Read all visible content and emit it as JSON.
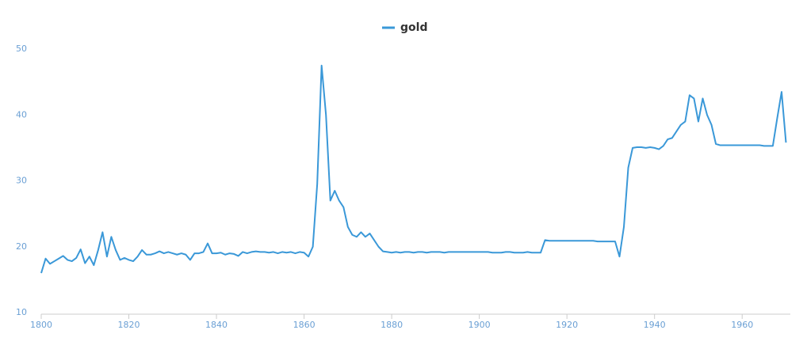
{
  "chart_data": {
    "type": "line",
    "x": [
      1800,
      1801,
      1802,
      1803,
      1804,
      1805,
      1806,
      1807,
      1808,
      1809,
      1810,
      1811,
      1812,
      1813,
      1814,
      1815,
      1816,
      1817,
      1818,
      1819,
      1820,
      1821,
      1822,
      1823,
      1824,
      1825,
      1826,
      1827,
      1828,
      1829,
      1830,
      1831,
      1832,
      1833,
      1834,
      1835,
      1836,
      1837,
      1838,
      1839,
      1840,
      1841,
      1842,
      1843,
      1844,
      1845,
      1846,
      1847,
      1848,
      1849,
      1850,
      1851,
      1852,
      1853,
      1854,
      1855,
      1856,
      1857,
      1858,
      1859,
      1860,
      1861,
      1862,
      1863,
      1864,
      1865,
      1866,
      1867,
      1868,
      1869,
      1870,
      1871,
      1872,
      1873,
      1874,
      1875,
      1876,
      1877,
      1878,
      1879,
      1880,
      1881,
      1882,
      1883,
      1884,
      1885,
      1886,
      1887,
      1888,
      1889,
      1890,
      1891,
      1892,
      1893,
      1894,
      1895,
      1896,
      1897,
      1898,
      1899,
      1900,
      1901,
      1902,
      1903,
      1904,
      1905,
      1906,
      1907,
      1908,
      1909,
      1910,
      1911,
      1912,
      1913,
      1914,
      1915,
      1916,
      1917,
      1918,
      1919,
      1920,
      1921,
      1922,
      1923,
      1924,
      1925,
      1926,
      1927,
      1928,
      1929,
      1930,
      1931,
      1932,
      1933,
      1934,
      1935,
      1936,
      1937,
      1938,
      1939,
      1940,
      1941,
      1942,
      1943,
      1944,
      1945,
      1946,
      1947,
      1948,
      1949,
      1950,
      1951,
      1952,
      1953,
      1954,
      1955,
      1956,
      1957,
      1958,
      1959,
      1960,
      1961,
      1962,
      1963,
      1964,
      1965,
      1966,
      1967,
      1968,
      1969,
      1970
    ],
    "series": [
      {
        "name": "gold",
        "color": "#3a98d8",
        "values": [
          16,
          18.2,
          17.4,
          17.8,
          18.2,
          18.6,
          18.0,
          17.8,
          18.3,
          19.6,
          17.5,
          18.5,
          17.2,
          19.5,
          22.2,
          18.5,
          21.5,
          19.5,
          18.0,
          18.3,
          18.0,
          17.8,
          18.5,
          19.5,
          18.8,
          18.8,
          19.0,
          19.3,
          19.0,
          19.2,
          19.0,
          18.8,
          19.0,
          18.8,
          18.0,
          19.0,
          19.0,
          19.2,
          20.5,
          19.0,
          19.0,
          19.1,
          18.8,
          19.0,
          18.9,
          18.6,
          19.2,
          19.0,
          19.2,
          19.3,
          19.2,
          19.2,
          19.1,
          19.2,
          19.0,
          19.2,
          19.1,
          19.2,
          19.0,
          19.2,
          19.1,
          18.5,
          20.0,
          29.5,
          47.5,
          40.0,
          27.0,
          28.5,
          27.0,
          26.0,
          23.0,
          21.8,
          21.5,
          22.2,
          21.5,
          22.0,
          21.0,
          20.0,
          19.3,
          19.2,
          19.1,
          19.2,
          19.1,
          19.2,
          19.2,
          19.1,
          19.2,
          19.2,
          19.1,
          19.2,
          19.2,
          19.2,
          19.1,
          19.2,
          19.2,
          19.2,
          19.2,
          19.2,
          19.2,
          19.2,
          19.2,
          19.2,
          19.2,
          19.1,
          19.1,
          19.1,
          19.2,
          19.2,
          19.1,
          19.1,
          19.1,
          19.2,
          19.1,
          19.1,
          19.1,
          21.0,
          20.9,
          20.9,
          20.9,
          20.9,
          20.9,
          20.9,
          20.9,
          20.9,
          20.9,
          20.9,
          20.9,
          20.8,
          20.8,
          20.8,
          20.8,
          20.8,
          18.5,
          23.0,
          32.0,
          35.0,
          35.1,
          35.1,
          35.0,
          35.1,
          35.0,
          34.8,
          35.3,
          36.3,
          36.5,
          37.5,
          38.5,
          39.0,
          43.0,
          42.5,
          39.0,
          42.5,
          40.0,
          38.5,
          35.6,
          35.4,
          35.4,
          35.4,
          35.4,
          35.4,
          35.4,
          35.4,
          35.4,
          35.4,
          35.4,
          35.3,
          35.3,
          35.3,
          39.5,
          43.5,
          35.8
        ]
      }
    ],
    "xlim": [
      1800,
      1971
    ],
    "xticks": [
      1800,
      1820,
      1840,
      1860,
      1880,
      1900,
      1920,
      1940,
      1960
    ],
    "ylim": [
      10,
      50
    ],
    "yticks": [
      10,
      20,
      30,
      40,
      50
    ]
  }
}
